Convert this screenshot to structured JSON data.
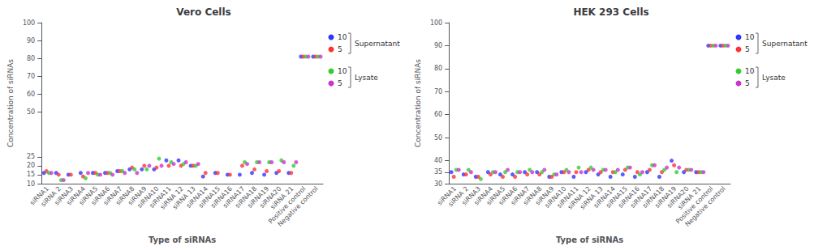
{
  "chart_data": [
    {
      "type": "scatter",
      "title": "Vero Cells",
      "xlabel": "Type of siRNAs",
      "ylabel": "Concentration of siRNAs",
      "categories": [
        "siRNA1",
        "siRNA 2",
        "siRNA3",
        "siRNA4",
        "siRNA5",
        "siRNA6",
        "siRNA7",
        "siRNA8",
        "siRNA9",
        "siRNA10",
        "siRNA11",
        "siRNA 12",
        "siRNA 13",
        "siRNA14",
        "siRNA15",
        "siRNA16",
        "siRNA17",
        "siRNA18",
        "siRNA19",
        "siRNA20",
        "siRNA 21",
        "Positive control",
        "Negative control"
      ],
      "series": [
        {
          "name": "10",
          "group": "Supernatant",
          "color": "#3333FF",
          "values": [
            16,
            16,
            15,
            16,
            16,
            16,
            17,
            18,
            18,
            18,
            23,
            23,
            20,
            14,
            16,
            15,
            15,
            16,
            15,
            16,
            16,
            81,
            81
          ]
        },
        {
          "name": "5",
          "group": "Supernatant",
          "color": "#FF3333",
          "values": [
            17,
            15,
            15,
            14,
            16,
            16,
            17,
            19,
            20,
            19,
            20,
            20,
            20,
            16,
            16,
            15,
            20,
            18,
            17,
            17,
            16,
            81,
            81
          ]
        },
        {
          "name": "10",
          "group": "Lysate",
          "color": "#33CC33",
          "values": [
            16,
            12,
            null,
            13,
            15,
            16,
            17,
            18,
            18,
            24,
            22,
            21,
            20,
            null,
            null,
            null,
            22,
            22,
            22,
            23,
            20,
            81,
            81
          ]
        },
        {
          "name": "5",
          "group": "Lysate",
          "color": "#CC33CC",
          "values": [
            16,
            12,
            null,
            16,
            15,
            15,
            16,
            16,
            20,
            20,
            21,
            22,
            21,
            null,
            null,
            null,
            21,
            22,
            22,
            22,
            22,
            81,
            81
          ]
        }
      ],
      "ylim": [
        10,
        100
      ],
      "yticks": [
        10,
        15,
        20,
        25,
        50,
        60,
        70,
        80,
        90,
        100
      ],
      "grid": false
    },
    {
      "type": "scatter",
      "title": "HEK 293 Cells",
      "xlabel": "Type of siRNAs",
      "ylabel": "Concentration of siRNAs",
      "categories": [
        "siRNA1",
        "siRNA 2",
        "siRNA3",
        "siRNA4",
        "siRNA5",
        "siRNA6",
        "siRNA7",
        "siRNA8",
        "siRNA9",
        "siRNA10",
        "siRNA11",
        "siRNA 12",
        "siRNA 13",
        "siRNA14",
        "siRNA15",
        "siRNA16",
        "siRNA17",
        "siRNA18",
        "siRNA19",
        "siRNA20",
        "siRNA 21",
        "Positive control",
        "Negative control"
      ],
      "series": [
        {
          "name": "10",
          "group": "Supernatant",
          "color": "#3333FF",
          "values": [
            35,
            34,
            33,
            35,
            34,
            34,
            35,
            35,
            33,
            35,
            33,
            35,
            34,
            33,
            34,
            33,
            35,
            33,
            40,
            35,
            35,
            90,
            90
          ]
        },
        {
          "name": "5",
          "group": "Supernatant",
          "color": "#FF3333",
          "values": [
            33,
            34,
            33,
            34,
            33,
            33,
            34,
            34,
            33,
            35,
            35,
            36,
            35,
            35,
            36,
            35,
            36,
            35,
            38,
            36,
            35,
            90,
            90
          ]
        },
        {
          "name": "10",
          "group": "Lysate",
          "color": "#33CC33",
          "values": [
            36,
            36,
            32,
            35,
            35,
            35,
            36,
            35,
            34,
            36,
            37,
            37,
            36,
            35,
            37,
            34,
            38,
            36,
            35,
            36,
            35,
            90,
            90
          ]
        },
        {
          "name": "5",
          "group": "Lysate",
          "color": "#CC33CC",
          "values": [
            36,
            35,
            null,
            35,
            36,
            35,
            35,
            36,
            34,
            35,
            35,
            36,
            36,
            36,
            37,
            35,
            38,
            37,
            37,
            36,
            35,
            90,
            90
          ]
        }
      ],
      "ylim": [
        30,
        100
      ],
      "yticks": [
        30,
        35,
        40,
        50,
        60,
        70,
        80,
        90,
        100
      ],
      "grid": false
    }
  ]
}
